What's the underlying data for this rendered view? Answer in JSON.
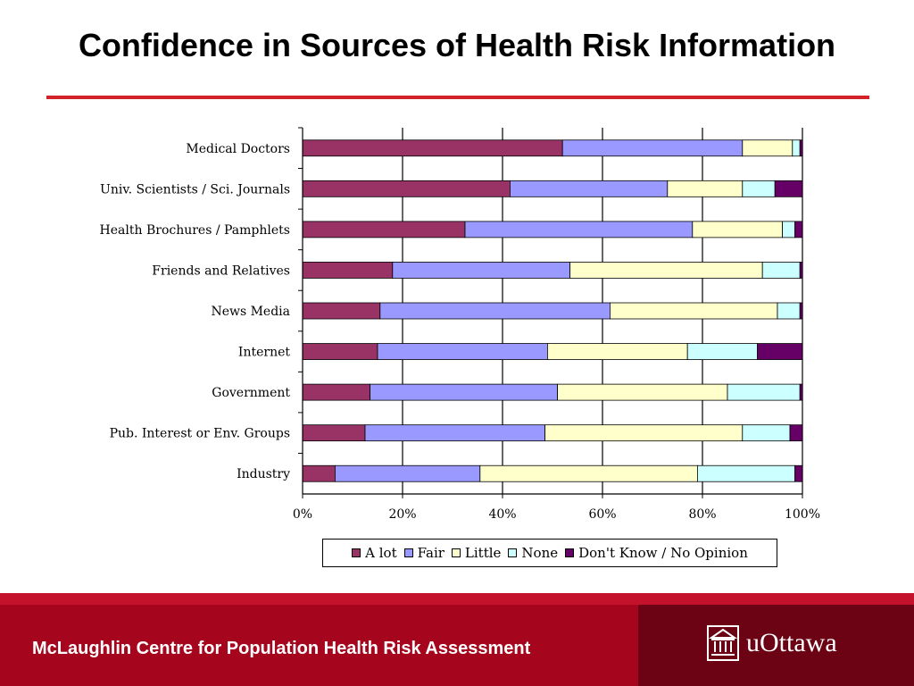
{
  "slide": {
    "title": "Confidence in Sources of Health Risk Information",
    "footer_text": "McLaughlin Centre for Population Health Risk Assessment",
    "logo_text": "uOttawa",
    "logo_icon": "building-columns-icon"
  },
  "colors": {
    "title_rule": "#d2232a",
    "footer": "#a6061d",
    "footer_dark": "#6b0314"
  },
  "chart_data": {
    "type": "bar",
    "orientation": "horizontal",
    "stacked": true,
    "percent": true,
    "categories": [
      "Medical Doctors",
      "Univ. Scientists / Sci. Journals",
      "Health Brochures / Pamphlets",
      "Friends and Relatives",
      "News Media",
      "Internet",
      "Government",
      "Pub. Interest or Env. Groups",
      "Industry"
    ],
    "series": [
      {
        "name": "A lot",
        "color": "#993366",
        "values": [
          52,
          41.5,
          32.5,
          18,
          15.5,
          15,
          13.5,
          12.5,
          6.5
        ]
      },
      {
        "name": "Fair",
        "color": "#9999ff",
        "values": [
          36,
          31.5,
          45.5,
          35.5,
          46,
          34,
          37.5,
          36,
          29
        ]
      },
      {
        "name": "Little",
        "color": "#ffffcc",
        "values": [
          10,
          15,
          18,
          38.5,
          33.5,
          28,
          34,
          39.5,
          43.5
        ]
      },
      {
        "name": "None",
        "color": "#ccffff",
        "values": [
          1.5,
          6.5,
          2.5,
          7.5,
          4.5,
          14,
          14.5,
          9.5,
          19.5
        ]
      },
      {
        "name": "Don't Know / No Opinion",
        "color": "#660066",
        "values": [
          0.5,
          5.5,
          1.5,
          0.5,
          0.5,
          9,
          0.5,
          2.5,
          1.5
        ]
      }
    ],
    "xlim": [
      0,
      100
    ],
    "xticks": [
      "0%",
      "20%",
      "40%",
      "60%",
      "80%",
      "100%"
    ],
    "grid": true,
    "legend_position": "bottom"
  }
}
